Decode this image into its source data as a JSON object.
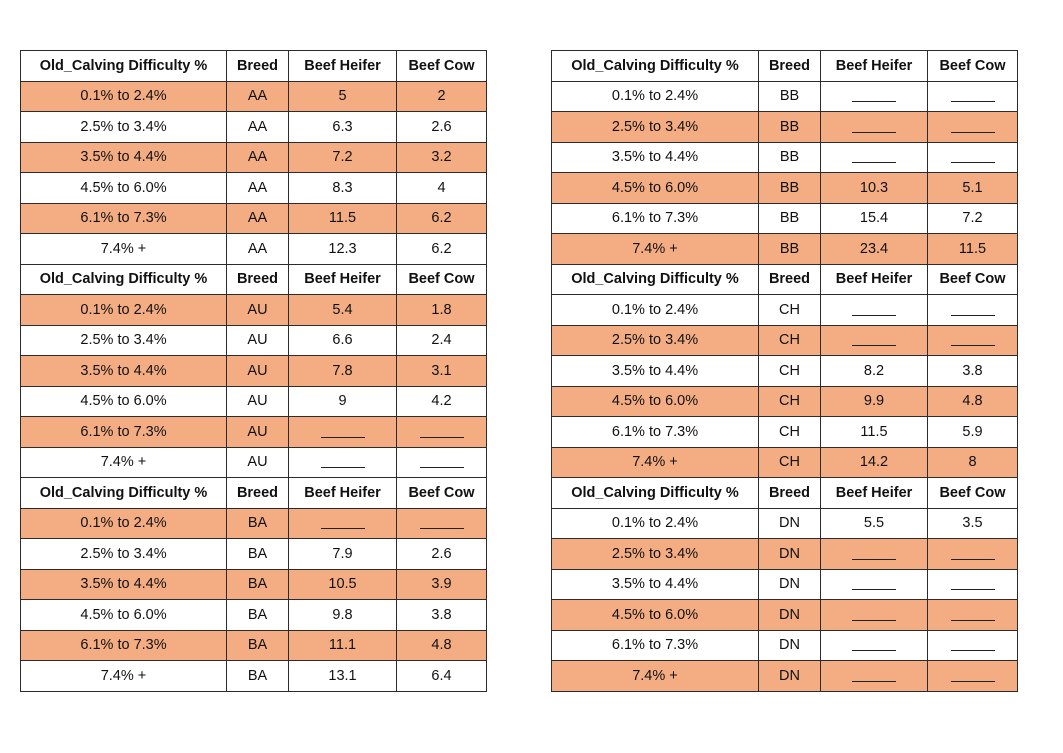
{
  "headers": [
    "Old_Calving Difficulty %",
    "Breed",
    "Beef Heifer",
    "Beef Cow"
  ],
  "blank": "",
  "left_blocks": [
    {
      "breed": "AA",
      "rows": [
        {
          "range": "0.1%  to 2.4%",
          "heifer": "5",
          "cow": "2",
          "shade": true
        },
        {
          "range": "2.5%  to 3.4%",
          "heifer": "6.3",
          "cow": "2.6",
          "shade": false
        },
        {
          "range": "3.5%  to 4.4%",
          "heifer": "7.2",
          "cow": "3.2",
          "shade": true
        },
        {
          "range": "4.5%  to 6.0%",
          "heifer": "8.3",
          "cow": "4",
          "shade": false
        },
        {
          "range": "6.1%  to 7.3%",
          "heifer": "11.5",
          "cow": "6.2",
          "shade": true
        },
        {
          "range": "7.4% +",
          "heifer": "12.3",
          "cow": "6.2",
          "shade": false
        }
      ]
    },
    {
      "breed": "AU",
      "rows": [
        {
          "range": "0.1%  to 2.4%",
          "heifer": "5.4",
          "cow": "1.8",
          "shade": true
        },
        {
          "range": "2.5%  to 3.4%",
          "heifer": "6.6",
          "cow": "2.4",
          "shade": false
        },
        {
          "range": "3.5%  to 4.4%",
          "heifer": "7.8",
          "cow": "3.1",
          "shade": true
        },
        {
          "range": "4.5%  to 6.0%",
          "heifer": "9",
          "cow": "4.2",
          "shade": false
        },
        {
          "range": "6.1%  to 7.3%",
          "heifer": null,
          "cow": null,
          "shade": true
        },
        {
          "range": "7.4% +",
          "heifer": null,
          "cow": null,
          "shade": false
        }
      ]
    },
    {
      "breed": "BA",
      "rows": [
        {
          "range": "0.1%  to 2.4%",
          "heifer": null,
          "cow": null,
          "shade": true
        },
        {
          "range": "2.5%  to 3.4%",
          "heifer": "7.9",
          "cow": "2.6",
          "shade": false
        },
        {
          "range": "3.5%  to 4.4%",
          "heifer": "10.5",
          "cow": "3.9",
          "shade": true
        },
        {
          "range": "4.5%  to 6.0%",
          "heifer": "9.8",
          "cow": "3.8",
          "shade": false
        },
        {
          "range": "6.1%  to 7.3%",
          "heifer": "11.1",
          "cow": "4.8",
          "shade": true
        },
        {
          "range": "7.4% +",
          "heifer": "13.1",
          "cow": "6.4",
          "shade": false
        }
      ]
    }
  ],
  "right_blocks": [
    {
      "breed": "BB",
      "rows": [
        {
          "range": "0.1%  to 2.4%",
          "heifer": null,
          "cow": null,
          "shade": false
        },
        {
          "range": "2.5%  to 3.4%",
          "heifer": null,
          "cow": null,
          "shade": true
        },
        {
          "range": "3.5%  to 4.4%",
          "heifer": null,
          "cow": null,
          "shade": false
        },
        {
          "range": "4.5%  to 6.0%",
          "heifer": "10.3",
          "cow": "5.1",
          "shade": true
        },
        {
          "range": "6.1%  to 7.3%",
          "heifer": "15.4",
          "cow": "7.2",
          "shade": false
        },
        {
          "range": "7.4% +",
          "heifer": "23.4",
          "cow": "11.5",
          "shade": true
        }
      ]
    },
    {
      "breed": "CH",
      "rows": [
        {
          "range": "0.1%  to 2.4%",
          "heifer": null,
          "cow": null,
          "shade": false
        },
        {
          "range": "2.5%  to 3.4%",
          "heifer": null,
          "cow": null,
          "shade": true
        },
        {
          "range": "3.5%  to 4.4%",
          "heifer": "8.2",
          "cow": "3.8",
          "shade": false
        },
        {
          "range": "4.5%  to 6.0%",
          "heifer": "9.9",
          "cow": "4.8",
          "shade": true
        },
        {
          "range": "6.1%  to 7.3%",
          "heifer": "11.5",
          "cow": "5.9",
          "shade": false
        },
        {
          "range": "7.4% +",
          "heifer": "14.2",
          "cow": "8",
          "shade": true
        }
      ]
    },
    {
      "breed": "DN",
      "rows": [
        {
          "range": "0.1%  to 2.4%",
          "heifer": "5.5",
          "cow": "3.5",
          "shade": false
        },
        {
          "range": "2.5%  to 3.4%",
          "heifer": null,
          "cow": null,
          "shade": true
        },
        {
          "range": "3.5%  to 4.4%",
          "heifer": null,
          "cow": null,
          "shade": false
        },
        {
          "range": "4.5%  to 6.0%",
          "heifer": null,
          "cow": null,
          "shade": true
        },
        {
          "range": "6.1%  to 7.3%",
          "heifer": null,
          "cow": null,
          "shade": false
        },
        {
          "range": "7.4% +",
          "heifer": null,
          "cow": null,
          "shade": true
        }
      ]
    }
  ],
  "colors": {
    "shade": "#f4ad83",
    "border": "#2b2b2b"
  }
}
